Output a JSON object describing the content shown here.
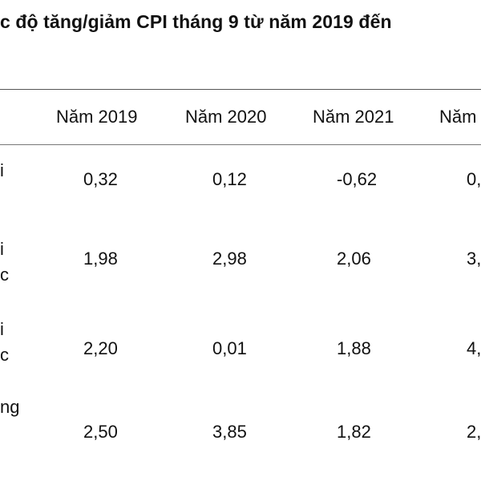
{
  "title": "c độ tăng/giảm CPI tháng 9 từ năm 2019 đến",
  "columns": [
    "Năm 2019",
    "Năm 2020",
    "Năm 2021",
    "Năm"
  ],
  "rows": [
    {
      "label_lines": [
        "i"
      ],
      "values": [
        "0,32",
        "0,12",
        "-0,62",
        "0,"
      ]
    },
    {
      "label_lines": [
        "i",
        "c"
      ],
      "values": [
        "1,98",
        "2,98",
        "2,06",
        "3,"
      ]
    },
    {
      "label_lines": [
        "i",
        "c"
      ],
      "values": [
        "2,20",
        "0,01",
        "1,88",
        "4,"
      ]
    },
    {
      "label_lines": [
        "ng",
        ""
      ],
      "values": [
        "2,50",
        "3,85",
        "1,82",
        "2,"
      ]
    }
  ]
}
